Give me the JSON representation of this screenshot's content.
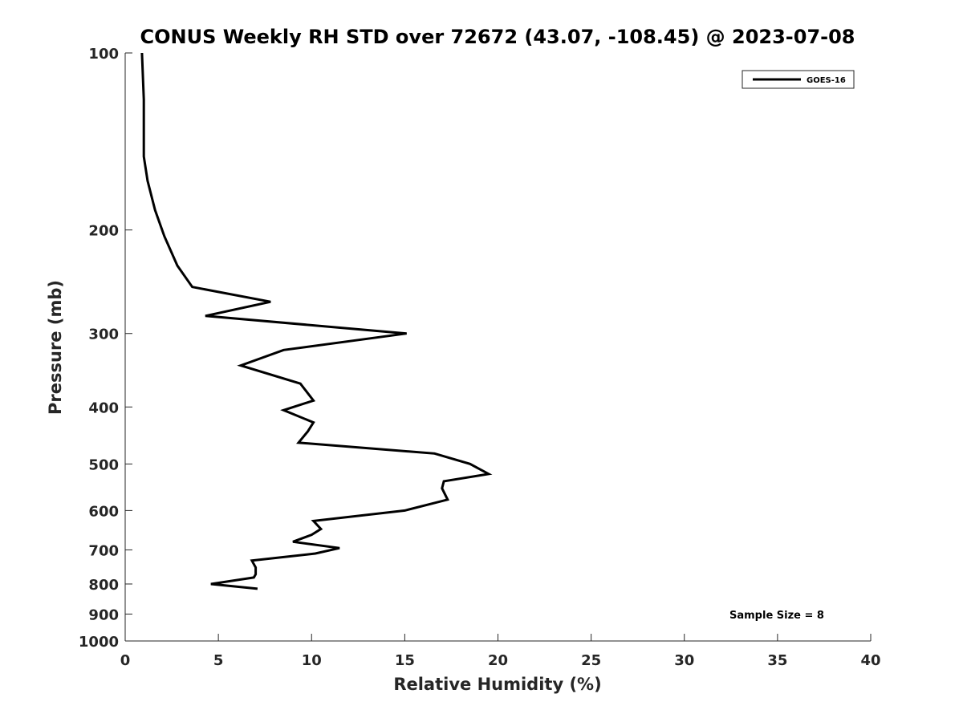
{
  "chart_data": {
    "type": "line",
    "title": "CONUS Weekly RH STD over 72672 (43.07, -108.45) @ 2023-07-08",
    "xlabel": "Relative Humidity (%)",
    "ylabel": "Pressure (mb)",
    "xlim": [
      0,
      40
    ],
    "ylim": [
      1000,
      100
    ],
    "y_scale": "log",
    "y_direction": "reversed",
    "x_ticks": [
      0,
      5,
      10,
      15,
      20,
      25,
      30,
      35,
      40
    ],
    "y_ticks": [
      100,
      200,
      300,
      400,
      500,
      600,
      700,
      800,
      900,
      1000
    ],
    "grid": false,
    "legend_position": "top-right",
    "series": [
      {
        "name": "GOES-16",
        "color": "#000000",
        "x": [
          0.9,
          1.0,
          1.0,
          1.2,
          1.6,
          2.1,
          2.8,
          3.6,
          7.8,
          4.3,
          15.1,
          8.5,
          6.2,
          9.4,
          10.1,
          8.5,
          10.1,
          9.8,
          9.3,
          16.6,
          18.5,
          19.5,
          17.1,
          17.0,
          17.3,
          15.0,
          10.1,
          10.5,
          10.0,
          9.0,
          11.5,
          10.2,
          6.8,
          7.0,
          7.0,
          6.9,
          4.6,
          7.1
        ],
        "y": [
          100,
          120,
          150,
          165,
          185,
          205,
          230,
          250,
          265,
          280,
          300,
          320,
          340,
          365,
          390,
          405,
          425,
          440,
          460,
          480,
          500,
          520,
          535,
          550,
          575,
          600,
          625,
          645,
          660,
          678,
          695,
          710,
          730,
          750,
          770,
          780,
          800,
          815
        ]
      }
    ],
    "annotations": [
      "Sample Size = 8"
    ]
  }
}
